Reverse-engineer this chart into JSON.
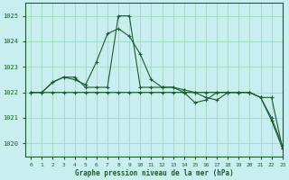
{
  "title": "Graphe pression niveau de la mer (hPa)",
  "background_color": "#c8eef0",
  "grid_color": "#a0d8c0",
  "line_color": "#1a5c2a",
  "xlim": [
    -0.5,
    23
  ],
  "ylim": [
    1019.5,
    1025.5
  ],
  "yticks": [
    1020,
    1021,
    1022,
    1023,
    1024,
    1025
  ],
  "xticks": [
    0,
    1,
    2,
    3,
    4,
    5,
    6,
    7,
    8,
    9,
    10,
    11,
    12,
    13,
    14,
    15,
    16,
    17,
    18,
    19,
    20,
    21,
    22,
    23
  ],
  "series1_x": [
    0,
    1,
    2,
    3,
    4,
    5,
    6,
    7,
    8,
    9,
    10,
    11,
    12,
    13,
    14,
    15,
    16,
    17,
    18,
    19,
    20,
    21,
    22,
    23
  ],
  "series1_y": [
    1022.0,
    1022.0,
    1022.4,
    1022.6,
    1022.6,
    1022.2,
    1022.2,
    1022.2,
    1025.0,
    1025.0,
    1022.2,
    1022.2,
    1022.2,
    1022.2,
    1022.1,
    1022.0,
    1021.8,
    1021.7,
    1022.0,
    1022.0,
    1022.0,
    1021.8,
    1020.9,
    1019.8
  ],
  "series2_x": [
    0,
    1,
    2,
    3,
    4,
    5,
    6,
    7,
    8,
    9,
    10,
    11,
    12,
    13,
    14,
    15,
    16,
    17,
    18,
    19,
    20,
    21,
    22,
    23
  ],
  "series2_y": [
    1022.0,
    1022.0,
    1022.4,
    1022.6,
    1022.5,
    1022.3,
    1023.2,
    1024.3,
    1024.5,
    1024.2,
    1023.5,
    1022.5,
    1022.2,
    1022.2,
    1022.0,
    1021.6,
    1021.7,
    1022.0,
    1022.0,
    1022.0,
    1022.0,
    1021.8,
    1021.8,
    1019.8
  ],
  "series3_x": [
    0,
    1,
    2,
    3,
    4,
    5,
    6,
    7,
    8,
    9,
    10,
    11,
    12,
    13,
    14,
    15,
    16,
    17,
    18,
    19,
    20,
    21,
    22,
    23
  ],
  "series3_y": [
    1022.0,
    1022.0,
    1022.0,
    1022.0,
    1022.0,
    1022.0,
    1022.0,
    1022.0,
    1022.0,
    1022.0,
    1022.0,
    1022.0,
    1022.0,
    1022.0,
    1022.0,
    1022.0,
    1022.0,
    1022.0,
    1022.0,
    1022.0,
    1022.0,
    1021.8,
    1021.0,
    1019.9
  ]
}
